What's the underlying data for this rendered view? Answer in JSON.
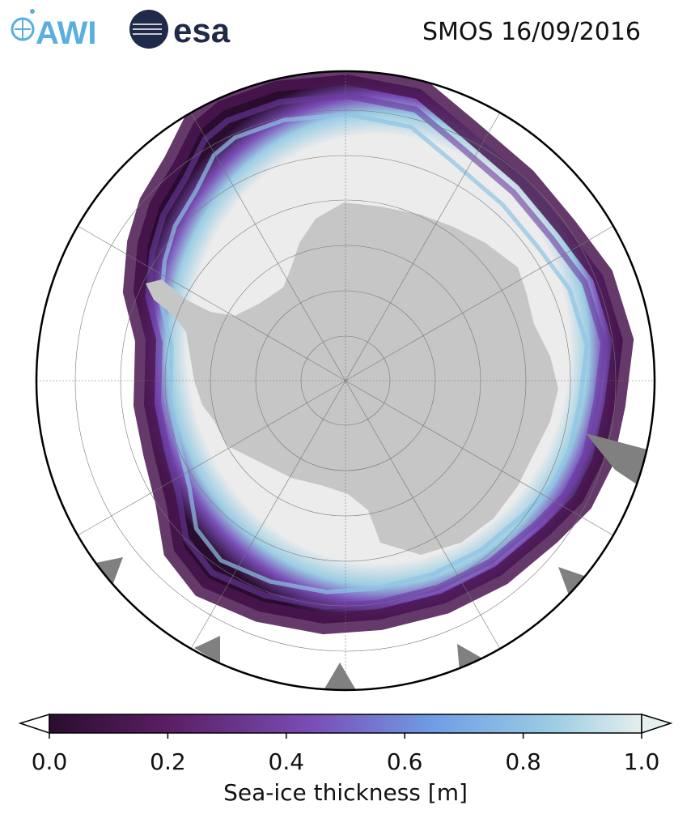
{
  "title": "SMOS 16/09/2016",
  "logos": {
    "awi": "AWI",
    "esa": "esa"
  },
  "map": {
    "projection": "south polar stereographic",
    "land_color": "#c6c6c6",
    "thick_ice_color": "#ececec",
    "missing_color": "#808080"
  },
  "colorbar": {
    "label": "Sea-ice thickness [m]",
    "min": 0.0,
    "max": 1.0,
    "extend": "both",
    "ticks": [
      "0.0",
      "0.2",
      "0.4",
      "0.6",
      "0.8",
      "1.0"
    ],
    "tick_values": [
      0.0,
      0.2,
      0.4,
      0.6,
      0.8,
      1.0
    ],
    "colors": [
      "#2a0d2e",
      "#5a1e63",
      "#7a4fb8",
      "#6f9ee6",
      "#9bcde3",
      "#e6eeee"
    ]
  }
}
